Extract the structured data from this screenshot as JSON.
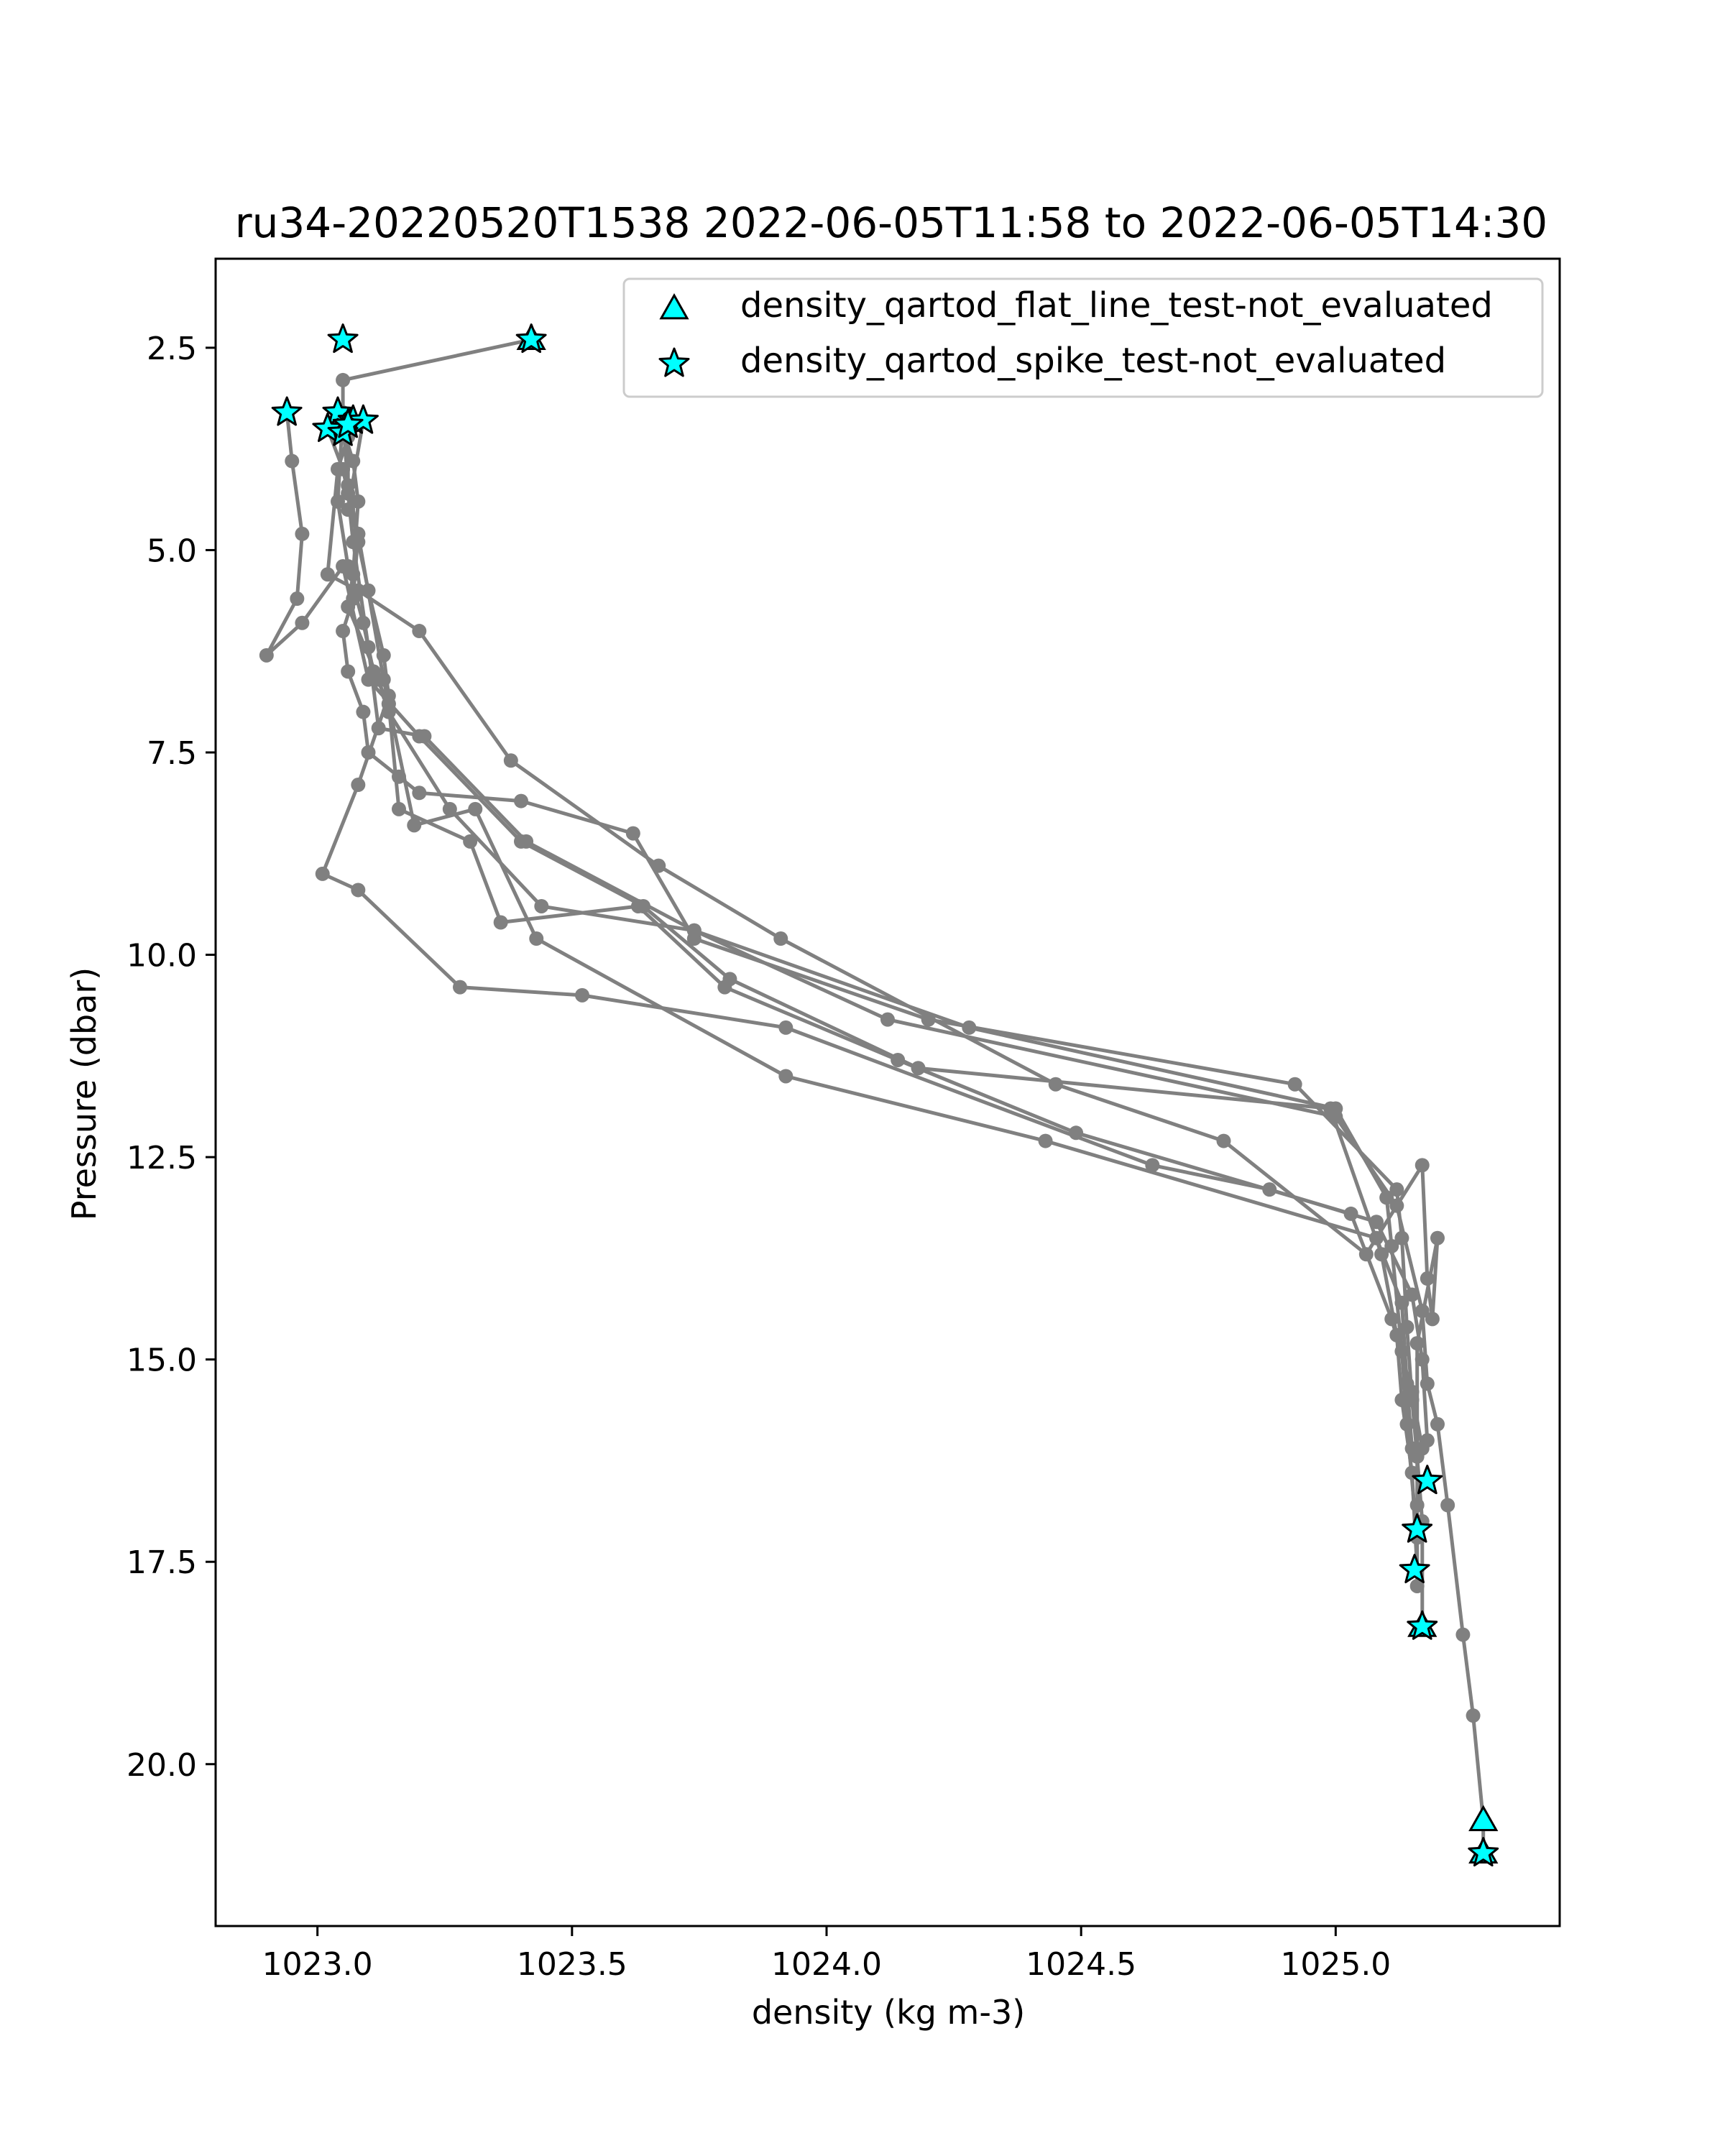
{
  "chart_data": {
    "type": "line",
    "title": "ru34-20220520T1538 2022-06-05T11:58 to 2022-06-05T14:30",
    "xlabel": "density (kg m-3)",
    "ylabel": "Pressure (dbar)",
    "xlim": [
      1022.8,
      1025.44
    ],
    "ylim": [
      22.0,
      1.4
    ],
    "y_inverted": true,
    "grid": false,
    "legend_position": "top-right",
    "x_ticks": [
      {
        "value": 1023.0,
        "label": "1023.0"
      },
      {
        "value": 1023.5,
        "label": "1023.5"
      },
      {
        "value": 1024.0,
        "label": "1024.0"
      },
      {
        "value": 1024.5,
        "label": "1024.5"
      },
      {
        "value": 1025.0,
        "label": "1025.0"
      }
    ],
    "y_ticks": [
      {
        "value": 2.5,
        "label": "2.5"
      },
      {
        "value": 5.0,
        "label": "5.0"
      },
      {
        "value": 7.5,
        "label": "7.5"
      },
      {
        "value": 10.0,
        "label": "10.0"
      },
      {
        "value": 12.5,
        "label": "12.5"
      },
      {
        "value": 15.0,
        "label": "15.0"
      },
      {
        "value": 17.5,
        "label": "17.5"
      },
      {
        "value": 20.0,
        "label": "20.0"
      }
    ],
    "colors": {
      "profile_line": "#808080",
      "flag_fill": "#00ffff",
      "flag_edge": "#000000"
    },
    "legend": [
      {
        "marker": "triangle",
        "label": "density_qartod_flat_line_test-not_evaluated"
      },
      {
        "marker": "star",
        "label": "density_qartod_spike_test-not_evaluated"
      }
    ],
    "series": [
      {
        "x": [
          1023.42,
          1023.05,
          1023.05,
          1023.06,
          1023.08,
          1023.07,
          1023.05,
          1023.06,
          1023.09,
          1023.1,
          1023.16,
          1023.2,
          1023.4,
          1023.62,
          1023.74,
          1024.2,
          1024.92,
          1025.12,
          1025.13,
          1025.14,
          1025.15,
          1025.16,
          1025.17,
          1025.17
        ],
        "y": [
          2.4,
          2.9,
          3.4,
          4.2,
          4.8,
          5.6,
          6.0,
          6.5,
          7.0,
          7.5,
          7.8,
          8.0,
          8.1,
          8.5,
          9.8,
          10.8,
          11.6,
          12.9,
          13.5,
          14.6,
          15.5,
          16.2,
          17.0,
          18.3
        ]
      },
      {
        "x": [
          1022.94,
          1022.95,
          1022.97,
          1022.96,
          1022.9,
          1022.97,
          1023.05,
          1023.1,
          1023.2,
          1023.4,
          1023.64,
          1023.81,
          1024.18,
          1024.99,
          1025.09,
          1025.12,
          1025.13,
          1025.15,
          1025.16
        ],
        "y": [
          3.3,
          3.9,
          4.8,
          5.6,
          6.3,
          5.9,
          5.2,
          6.6,
          7.3,
          8.6,
          9.4,
          10.3,
          11.4,
          11.9,
          13.7,
          14.7,
          15.5,
          16.4,
          17.6
        ]
      },
      {
        "x": [
          1023.04,
          1023.07,
          1023.08,
          1023.07,
          1023.06,
          1023.12,
          1023.14,
          1023.26,
          1023.44,
          1023.74,
          1024.12,
          1025.0,
          1025.12,
          1025.17,
          1025.18,
          1025.2,
          1025.22,
          1025.25,
          1025.27,
          1025.29,
          1025.29
        ],
        "y": [
          3.3,
          3.9,
          4.4,
          5.3,
          5.7,
          6.6,
          7.0,
          8.2,
          9.4,
          9.7,
          10.8,
          12.0,
          13.1,
          14.4,
          15.3,
          15.8,
          16.8,
          18.4,
          19.4,
          20.7,
          21.1
        ]
      },
      {
        "x": [
          1023.02,
          1023.05,
          1023.08,
          1023.1,
          1023.13,
          1023.14,
          1023.08,
          1023.01,
          1023.08,
          1023.28,
          1023.52,
          1023.92,
          1024.64,
          1024.87,
          1025.08,
          1025.15,
          1025.17,
          1025.18
        ],
        "y": [
          3.5,
          4.0,
          4.9,
          5.5,
          6.3,
          6.8,
          7.9,
          9.0,
          9.2,
          10.4,
          10.5,
          10.9,
          12.6,
          12.9,
          13.3,
          14.2,
          15.0,
          16.0
        ]
      },
      {
        "x": [
          1023.05,
          1023.04,
          1023.06,
          1023.09,
          1023.11,
          1023.14,
          1023.16,
          1023.3,
          1023.36,
          1023.63,
          1023.8,
          1024.14,
          1024.49,
          1025.03,
          1025.11,
          1025.15,
          1025.17
        ],
        "y": [
          3.3,
          4.4,
          5.2,
          5.9,
          6.5,
          6.9,
          8.2,
          8.6,
          9.6,
          9.4,
          10.4,
          11.3,
          12.2,
          13.2,
          14.5,
          15.4,
          16.1
        ]
      },
      {
        "x": [
          1023.07,
          1023.04,
          1023.02,
          1023.08,
          1023.2,
          1023.38,
          1023.67,
          1023.91,
          1024.45,
          1024.78,
          1025.06,
          1025.17,
          1025.18,
          1025.19,
          1025.2,
          1025.16,
          1025.16,
          1025.16
        ],
        "y": [
          3.4,
          4.0,
          5.3,
          5.5,
          6.0,
          7.6,
          8.9,
          9.8,
          11.6,
          12.3,
          13.7,
          12.6,
          14.0,
          14.5,
          13.5,
          14.8,
          16.8,
          17.8
        ]
      },
      {
        "x": [
          1023.06,
          1023.06,
          1023.07,
          1023.1,
          1023.12,
          1023.21,
          1023.41,
          1023.74,
          1024.28,
          1025.0,
          1025.1,
          1025.11,
          1025.13,
          1025.14,
          1025.16
        ],
        "y": [
          3.6,
          4.3,
          4.9,
          6.2,
          7.2,
          7.3,
          8.6,
          9.7,
          10.9,
          11.9,
          13.0,
          13.6,
          14.9,
          15.8,
          17.2
        ]
      },
      {
        "x": [
          1023.09,
          1023.06,
          1023.08,
          1023.13,
          1023.14,
          1023.19,
          1023.31,
          1023.43,
          1023.92,
          1024.43,
          1025.08,
          1025.13,
          1025.14,
          1025.15
        ],
        "y": [
          3.4,
          4.5,
          4.8,
          6.6,
          6.9,
          8.4,
          8.2,
          9.8,
          11.5,
          12.3,
          13.5,
          14.3,
          15.3,
          16.1
        ]
      }
    ],
    "flags": {
      "spike_test_not_evaluated": {
        "x": [
          1023.42,
          1023.05,
          1022.94,
          1023.04,
          1023.07,
          1023.09,
          1023.02,
          1023.05,
          1023.06,
          1025.18,
          1025.16,
          1025.155,
          1025.17,
          1025.29
        ],
        "y": [
          2.4,
          2.4,
          3.3,
          3.3,
          3.4,
          3.4,
          3.5,
          3.55,
          3.45,
          16.5,
          17.1,
          17.6,
          18.3,
          21.1
        ]
      },
      "flat_line_test_not_evaluated": {
        "x": [
          1023.42,
          1025.17,
          1025.29,
          1025.29
        ],
        "y": [
          2.4,
          18.3,
          20.7,
          21.1
        ]
      }
    }
  }
}
